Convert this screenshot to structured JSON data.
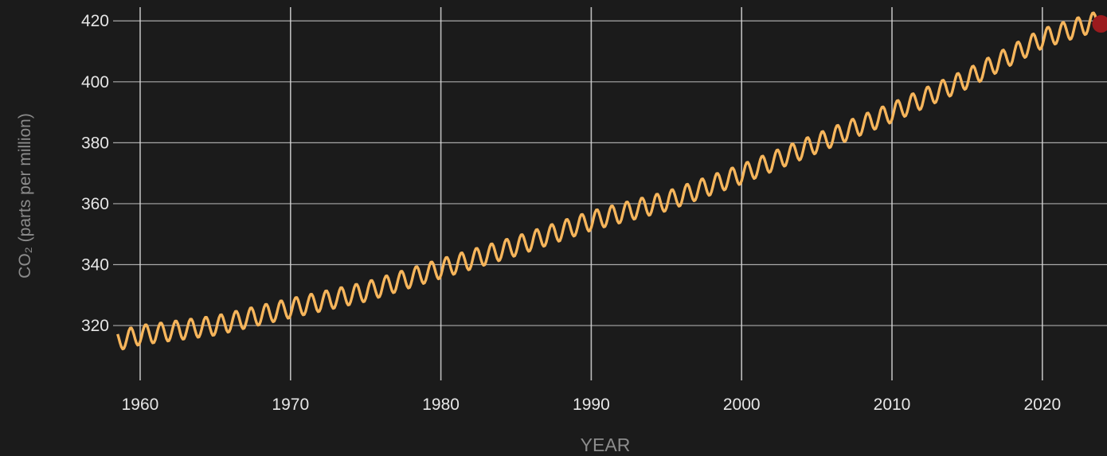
{
  "chart_data": {
    "type": "line",
    "title": "",
    "xlabel": "YEAR",
    "ylabel": "CO₂ (parts per million)",
    "xlim": [
      1958.2,
      2024.3
    ],
    "ylim": [
      302,
      424.5
    ],
    "x_ticks": [
      1960,
      1970,
      1980,
      1990,
      2000,
      2010,
      2020
    ],
    "y_ticks": [
      320,
      340,
      360,
      380,
      400,
      420
    ],
    "x_tick_labels": [
      "1960",
      "1970",
      "1980",
      "1990",
      "2000",
      "2010",
      "2020"
    ],
    "y_tick_labels": [
      "320",
      "340",
      "360",
      "380",
      "400",
      "420"
    ],
    "grid": true,
    "series": [
      {
        "color": "#f6b55b",
        "seasonal_amplitude": 3.2,
        "trend_points": [
          {
            "x": 1958.5,
            "y": 315.0
          },
          {
            "x": 1960.0,
            "y": 316.9
          },
          {
            "x": 1965.0,
            "y": 320.0
          },
          {
            "x": 1970.0,
            "y": 325.7
          },
          {
            "x": 1975.0,
            "y": 331.1
          },
          {
            "x": 1980.0,
            "y": 338.7
          },
          {
            "x": 1985.0,
            "y": 346.1
          },
          {
            "x": 1990.0,
            "y": 354.4
          },
          {
            "x": 1995.0,
            "y": 360.8
          },
          {
            "x": 2000.0,
            "y": 369.7
          },
          {
            "x": 2005.0,
            "y": 379.8
          },
          {
            "x": 2010.0,
            "y": 389.9
          },
          {
            "x": 2015.0,
            "y": 401.0
          },
          {
            "x": 2020.0,
            "y": 414.2
          },
          {
            "x": 2023.7,
            "y": 420.0
          }
        ]
      }
    ],
    "latest_point": {
      "x": 2023.9,
      "y": 419.0,
      "color": "#9b1b1e"
    }
  }
}
